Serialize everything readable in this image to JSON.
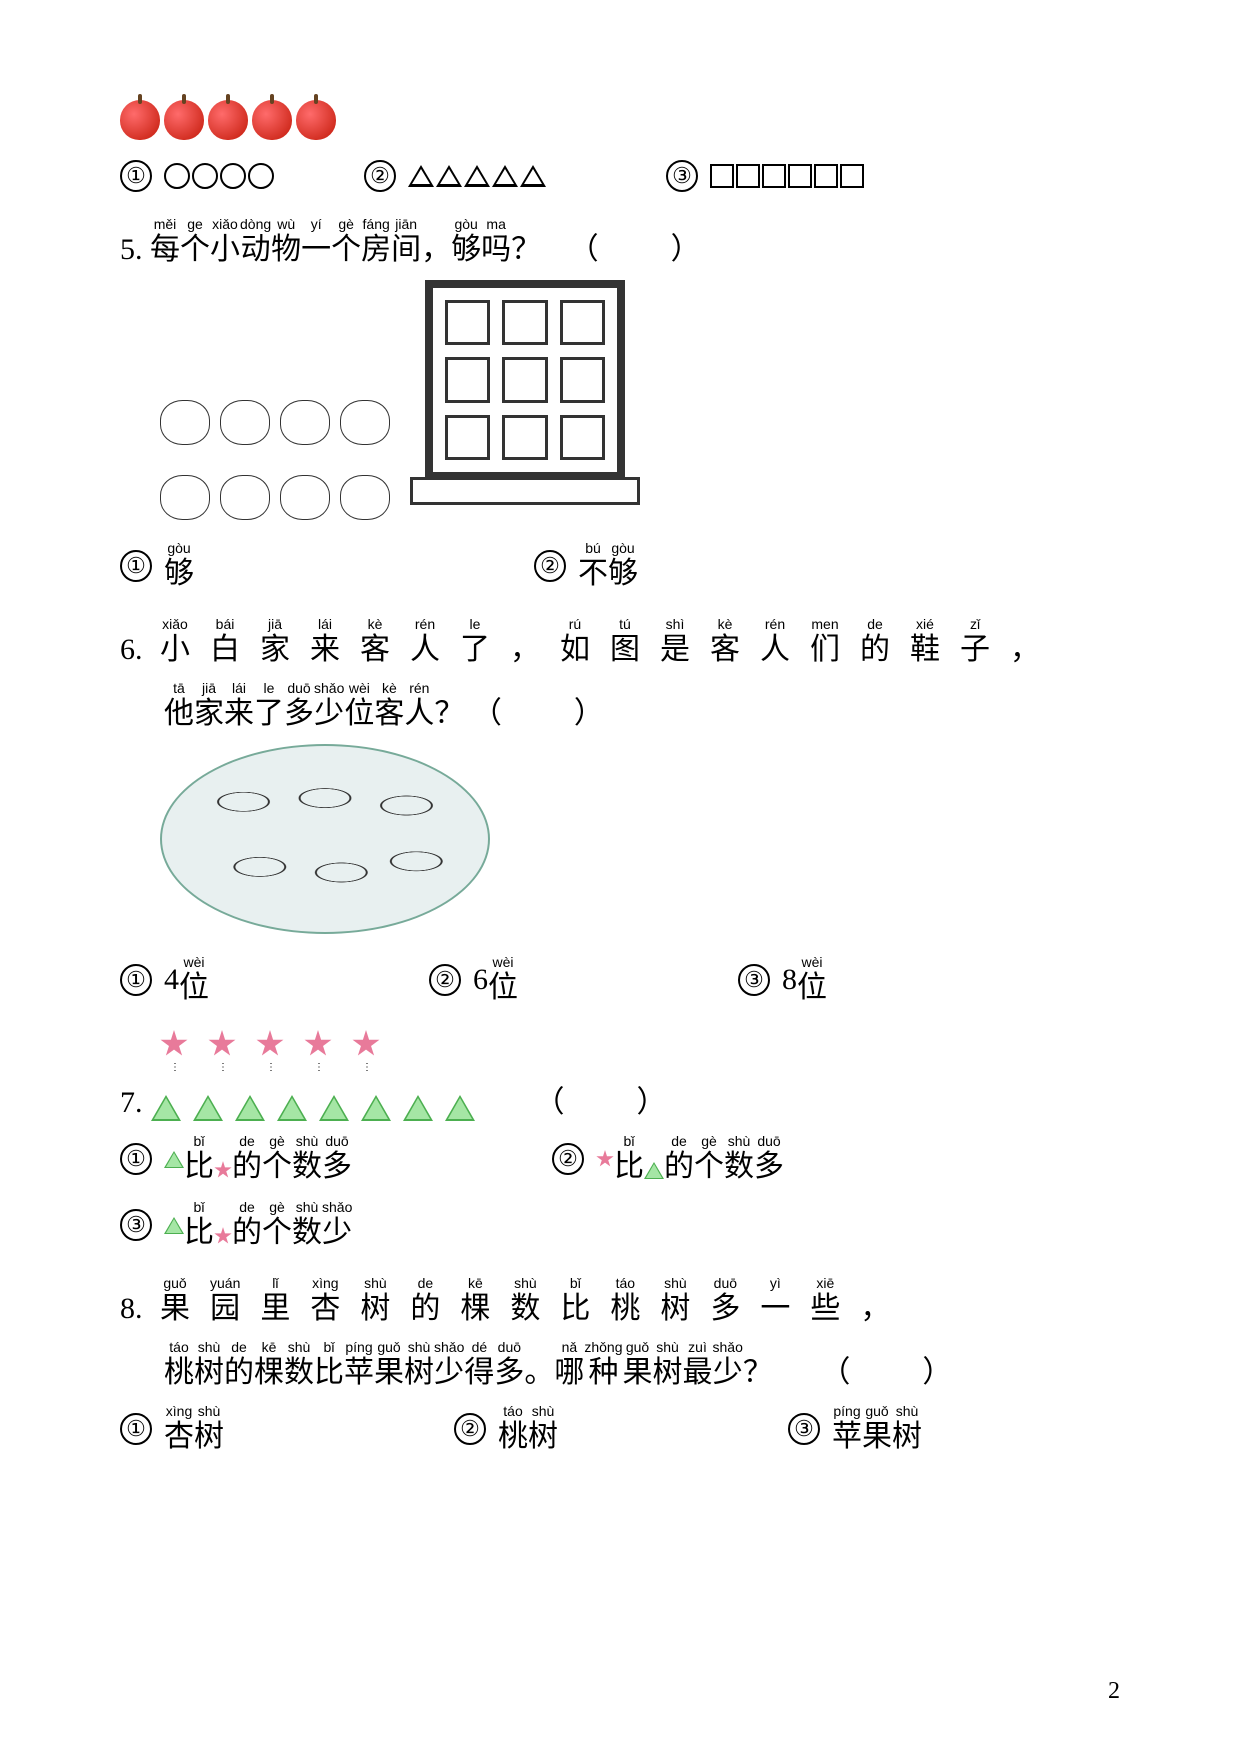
{
  "apple_count": 5,
  "q4_options": {
    "opt1": {
      "marker": "①",
      "shape": "circle",
      "count": 4
    },
    "opt2": {
      "marker": "②",
      "shape": "triangle",
      "count": 5
    },
    "opt3": {
      "marker": "③",
      "shape": "square",
      "count": 6
    }
  },
  "q5": {
    "num": "5.",
    "chars": [
      {
        "p": "měi",
        "h": "每"
      },
      {
        "p": "ge",
        "h": "个"
      },
      {
        "p": "xiǎo",
        "h": "小"
      },
      {
        "p": "dòng",
        "h": "动"
      },
      {
        "p": "wù",
        "h": "物"
      },
      {
        "p": "yí",
        "h": "一"
      },
      {
        "p": "gè",
        "h": "个"
      },
      {
        "p": "fáng",
        "h": "房"
      },
      {
        "p": "jiān",
        "h": "间"
      },
      {
        "p": "",
        "h": "，"
      },
      {
        "p": "gòu",
        "h": "够"
      },
      {
        "p": "ma",
        "h": "吗"
      },
      {
        "p": "",
        "h": "？"
      }
    ],
    "paren": "（　　）",
    "opt1_marker": "①",
    "opt1": [
      {
        "p": "gòu",
        "h": "够"
      }
    ],
    "opt2_marker": "②",
    "opt2": [
      {
        "p": "bú",
        "h": "不"
      },
      {
        "p": "gòu",
        "h": "够"
      }
    ]
  },
  "q6": {
    "num": "6.",
    "line1": [
      {
        "p": "xiǎo",
        "h": "小"
      },
      {
        "p": "bái",
        "h": "白"
      },
      {
        "p": "jiā",
        "h": "家"
      },
      {
        "p": "lái",
        "h": "来"
      },
      {
        "p": "kè",
        "h": "客"
      },
      {
        "p": "rén",
        "h": "人"
      },
      {
        "p": "le",
        "h": "了"
      },
      {
        "p": "",
        "h": "，"
      },
      {
        "p": "rú",
        "h": "如"
      },
      {
        "p": "tú",
        "h": "图"
      },
      {
        "p": "shì",
        "h": "是"
      },
      {
        "p": "kè",
        "h": "客"
      },
      {
        "p": "rén",
        "h": "人"
      },
      {
        "p": "men",
        "h": "们"
      },
      {
        "p": "de",
        "h": "的"
      },
      {
        "p": "xié",
        "h": "鞋"
      },
      {
        "p": "zǐ",
        "h": "子"
      },
      {
        "p": "",
        "h": "，"
      }
    ],
    "line2": [
      {
        "p": "tā",
        "h": "他"
      },
      {
        "p": "jiā",
        "h": "家"
      },
      {
        "p": "lái",
        "h": "来"
      },
      {
        "p": "le",
        "h": "了"
      },
      {
        "p": "duō",
        "h": "多"
      },
      {
        "p": "shǎo",
        "h": "少"
      },
      {
        "p": "wèi",
        "h": "位"
      },
      {
        "p": "kè",
        "h": "客"
      },
      {
        "p": "rén",
        "h": "人"
      },
      {
        "p": "",
        "h": "？"
      }
    ],
    "paren": "（　　）",
    "opt1_marker": "①",
    "opt1_pre": "4",
    "opt1": [
      {
        "p": "wèi",
        "h": "位"
      }
    ],
    "opt2_marker": "②",
    "opt2_pre": "6",
    "opt2": [
      {
        "p": "wèi",
        "h": "位"
      }
    ],
    "opt3_marker": "③",
    "opt3_pre": "8",
    "opt3": [
      {
        "p": "wèi",
        "h": "位"
      }
    ]
  },
  "q7": {
    "num": "7.",
    "stars": 5,
    "triangles": 8,
    "paren": "（　　）",
    "opt1_marker": "①",
    "opt1_chars": [
      {
        "p": "bǐ",
        "h": "比"
      },
      {
        "p": "",
        "h": ""
      },
      {
        "p": "de",
        "h": "的"
      },
      {
        "p": "gè",
        "h": "个"
      },
      {
        "p": "shù",
        "h": "数"
      },
      {
        "p": "duō",
        "h": "多"
      }
    ],
    "opt2_marker": "②",
    "opt2_chars": [
      {
        "p": "bǐ",
        "h": "比"
      },
      {
        "p": "",
        "h": ""
      },
      {
        "p": "de",
        "h": "的"
      },
      {
        "p": "gè",
        "h": "个"
      },
      {
        "p": "shù",
        "h": "数"
      },
      {
        "p": "duō",
        "h": "多"
      }
    ],
    "opt3_marker": "③",
    "opt3_chars": [
      {
        "p": "bǐ",
        "h": "比"
      },
      {
        "p": "",
        "h": ""
      },
      {
        "p": "de",
        "h": "的"
      },
      {
        "p": "gè",
        "h": "个"
      },
      {
        "p": "shù",
        "h": "数"
      },
      {
        "p": "shǎo",
        "h": "少"
      }
    ]
  },
  "q8": {
    "num": "8.",
    "line1": [
      {
        "p": "guǒ",
        "h": "果"
      },
      {
        "p": "yuán",
        "h": "园"
      },
      {
        "p": "lǐ",
        "h": "里"
      },
      {
        "p": "xìng",
        "h": "杏"
      },
      {
        "p": "shù",
        "h": "树"
      },
      {
        "p": "de",
        "h": "的"
      },
      {
        "p": "kē",
        "h": "棵"
      },
      {
        "p": "shù",
        "h": "数"
      },
      {
        "p": "bǐ",
        "h": "比"
      },
      {
        "p": "táo",
        "h": "桃"
      },
      {
        "p": "shù",
        "h": "树"
      },
      {
        "p": "duō",
        "h": "多"
      },
      {
        "p": "yì",
        "h": "一"
      },
      {
        "p": "xiē",
        "h": "些"
      },
      {
        "p": "",
        "h": "，"
      }
    ],
    "line2": [
      {
        "p": "táo",
        "h": "桃"
      },
      {
        "p": "shù",
        "h": "树"
      },
      {
        "p": "de",
        "h": "的"
      },
      {
        "p": "kē",
        "h": "棵"
      },
      {
        "p": "shù",
        "h": "数"
      },
      {
        "p": "bǐ",
        "h": "比"
      },
      {
        "p": "píng",
        "h": "苹"
      },
      {
        "p": "guǒ",
        "h": "果"
      },
      {
        "p": "shù",
        "h": "树"
      },
      {
        "p": "shǎo",
        "h": "少"
      },
      {
        "p": "dé",
        "h": "得"
      },
      {
        "p": "duō",
        "h": "多"
      },
      {
        "p": "",
        "h": "。"
      },
      {
        "p": "nǎ",
        "h": "哪"
      },
      {
        "p": "zhǒng",
        "h": "种"
      },
      {
        "p": "guǒ",
        "h": "果"
      },
      {
        "p": "shù",
        "h": "树"
      },
      {
        "p": "zuì",
        "h": "最"
      },
      {
        "p": "shǎo",
        "h": "少"
      },
      {
        "p": "",
        "h": "？"
      }
    ],
    "paren": "（　　）",
    "opt1_marker": "①",
    "opt1": [
      {
        "p": "xìng",
        "h": "杏"
      },
      {
        "p": "shù",
        "h": "树"
      }
    ],
    "opt2_marker": "②",
    "opt2": [
      {
        "p": "táo",
        "h": "桃"
      },
      {
        "p": "shù",
        "h": "树"
      }
    ],
    "opt3_marker": "③",
    "opt3": [
      {
        "p": "píng",
        "h": "苹"
      },
      {
        "p": "guǒ",
        "h": "果"
      },
      {
        "p": "shù",
        "h": "树"
      }
    ]
  },
  "page_number": "2"
}
